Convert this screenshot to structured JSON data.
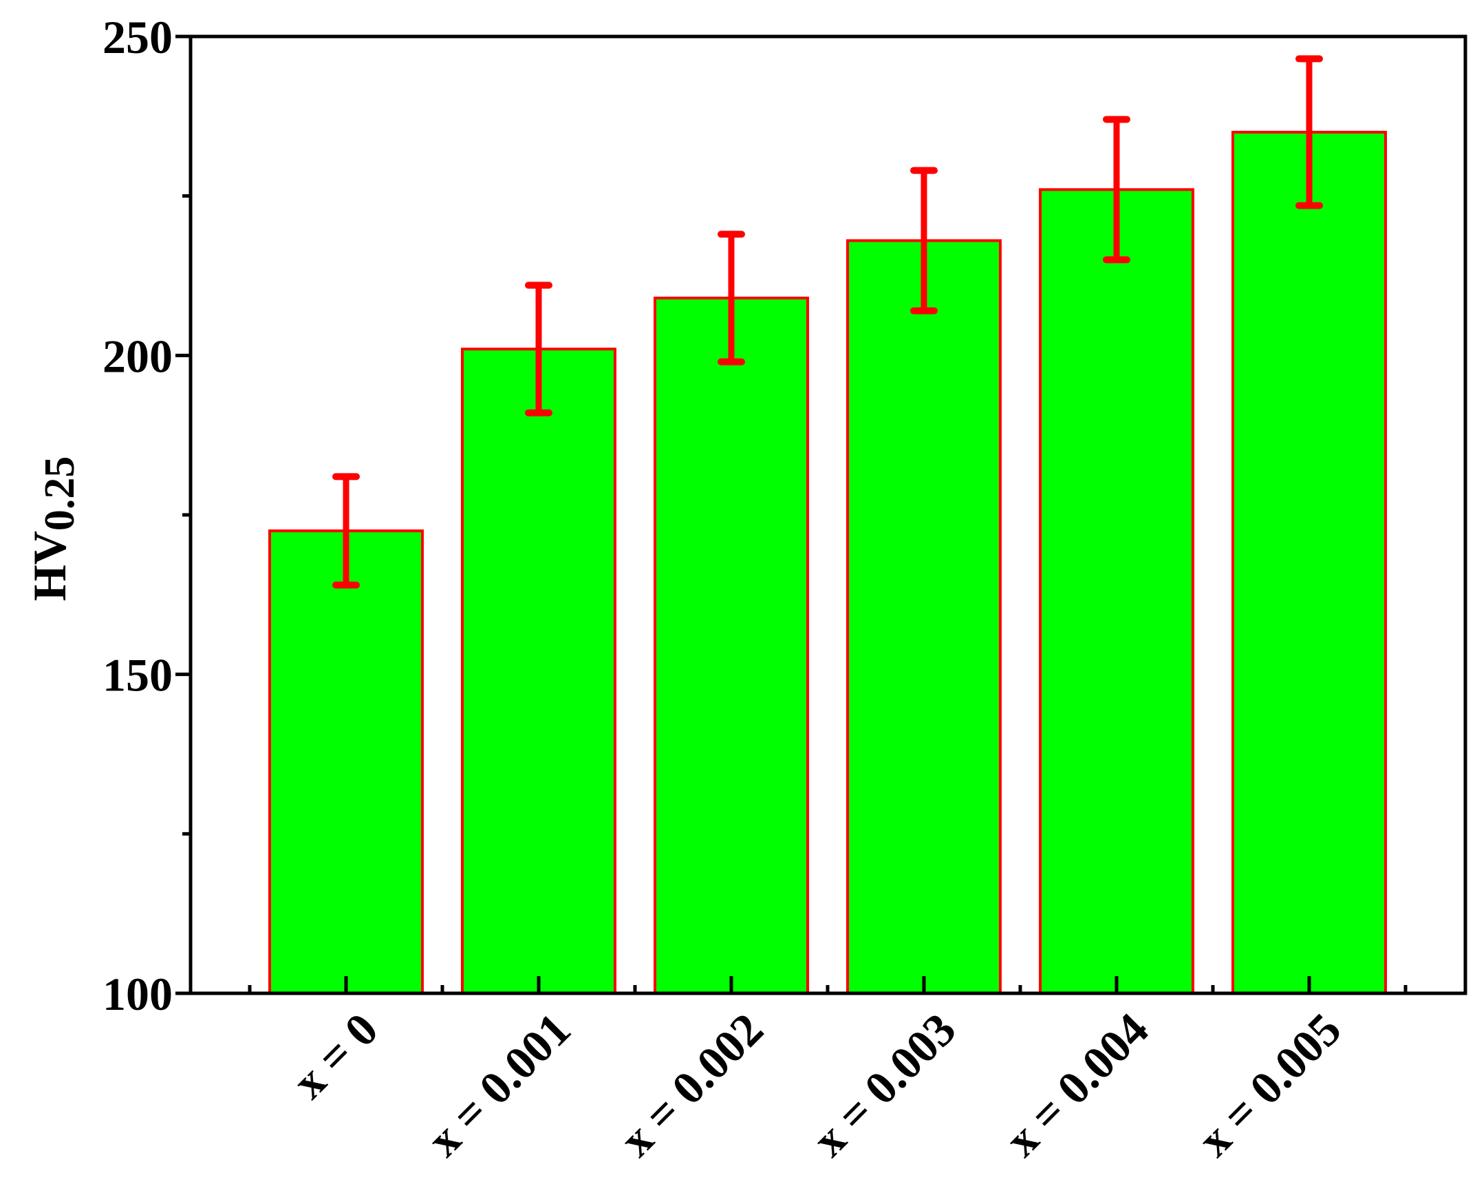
{
  "chart_data": {
    "type": "bar",
    "title": "",
    "xlabel": "",
    "ylabel": "HV",
    "ylabel_subscript": "0.25",
    "categories": [
      "x = 0",
      "x = 0.001",
      "x = 0.002",
      "x = 0.003",
      "x = 0.004",
      "x = 0.005"
    ],
    "values": [
      172.5,
      201,
      209,
      218,
      226,
      235
    ],
    "errors": [
      8.5,
      10,
      10,
      11,
      11,
      11.5
    ],
    "ylim": [
      100,
      250
    ],
    "yticks": [
      100,
      150,
      200,
      250
    ],
    "yticks_minor": [
      125,
      175,
      225
    ],
    "grid": false,
    "colors": {
      "bar_fill": "#00ff00",
      "bar_edge": "#ff0000",
      "error_bar": "#ff0000",
      "axis": "#000000"
    }
  }
}
